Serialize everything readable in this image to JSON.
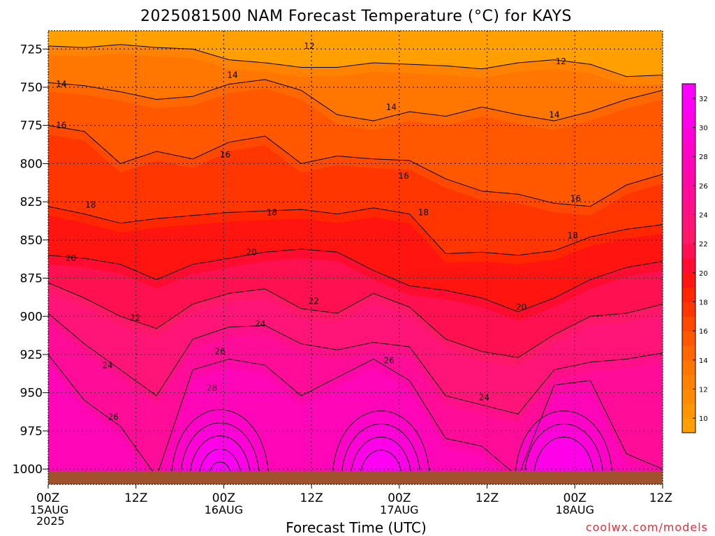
{
  "title": "2025081500 NAM Forecast Temperature (°C) for KAYS",
  "credit": "coolwx.com/models",
  "chart_data": {
    "type": "heatmap",
    "title": "2025081500 NAM Forecast Temperature (°C) for KAYS",
    "xlabel": "Forecast Time (UTC)",
    "ylabel": "",
    "xlim_hours": [
      0,
      84
    ],
    "ylim_hpa": [
      1010,
      713
    ],
    "y_ticks": [
      725,
      750,
      775,
      800,
      825,
      850,
      875,
      900,
      925,
      950,
      975,
      1000
    ],
    "x_ticks": [
      {
        "hour": 0,
        "line1": "00Z",
        "line2": "15AUG",
        "line3": "2025"
      },
      {
        "hour": 12,
        "line1": "12Z",
        "line2": "",
        "line3": ""
      },
      {
        "hour": 24,
        "line1": "00Z",
        "line2": "16AUG",
        "line3": ""
      },
      {
        "hour": 36,
        "line1": "12Z",
        "line2": "",
        "line3": ""
      },
      {
        "hour": 48,
        "line1": "00Z",
        "line2": "17AUG",
        "line3": ""
      },
      {
        "hour": 60,
        "line1": "12Z",
        "line2": "",
        "line3": ""
      },
      {
        "hour": 72,
        "line1": "00Z",
        "line2": "18AUG",
        "line3": ""
      },
      {
        "hour": 84,
        "line1": "12Z",
        "line2": "",
        "line3": ""
      }
    ],
    "colorbar": {
      "levels": [
        9,
        10,
        11,
        12,
        13,
        14,
        15,
        16,
        17,
        18,
        19,
        20,
        21,
        22,
        23,
        24,
        25,
        26,
        27,
        28,
        29,
        30,
        31,
        32,
        33
      ],
      "tick_labels": [
        "10",
        "12",
        "14",
        "16",
        "18",
        "20",
        "22",
        "24",
        "26",
        "28",
        "30",
        "32"
      ],
      "colors": [
        "#ffa000",
        "#ff9600",
        "#ff8c00",
        "#ff8200",
        "#ff7600",
        "#ff6800",
        "#ff5800",
        "#ff4800",
        "#ff3600",
        "#ff2600",
        "#ff1410",
        "#ff0c30",
        "#ff1050",
        "#ff1868",
        "#ff1478",
        "#ff1088",
        "#ff0c98",
        "#ff08a8",
        "#ff06b8",
        "#ff04c8",
        "#ff02d8",
        "#ff00e8",
        "#ff00f4",
        "#ff00ff"
      ]
    },
    "ground_color": "#a0522d",
    "grid": true,
    "isotherms": [
      {
        "value": 12,
        "pressure": [
          723,
          724,
          722,
          724,
          725,
          732,
          734,
          737,
          737,
          734,
          735,
          736,
          738,
          734,
          732,
          735,
          743,
          742
        ]
      },
      {
        "value": 14,
        "pressure": [
          747,
          749,
          753,
          758,
          756,
          748,
          745,
          752,
          768,
          772,
          766,
          769,
          763,
          768,
          772,
          766,
          758,
          752
        ]
      },
      {
        "value": 16,
        "pressure": [
          775,
          779,
          800,
          792,
          797,
          786,
          782,
          800,
          795,
          797,
          798,
          810,
          818,
          820,
          826,
          828,
          814,
          807
        ]
      },
      {
        "value": 18,
        "pressure": [
          828,
          833,
          839,
          836,
          834,
          832,
          831,
          830,
          833,
          829,
          833,
          859,
          858,
          860,
          857,
          848,
          843,
          840
        ]
      },
      {
        "value": 20,
        "pressure": [
          860,
          862,
          866,
          876,
          866,
          862,
          858,
          856,
          858,
          870,
          880,
          883,
          888,
          897,
          888,
          876,
          868,
          864
        ]
      },
      {
        "value": 22,
        "pressure": [
          878,
          888,
          900,
          908,
          892,
          885,
          882,
          895,
          898,
          885,
          894,
          915,
          923,
          927,
          912,
          900,
          898,
          892
        ]
      },
      {
        "value": 24,
        "pressure": [
          898,
          918,
          935,
          952,
          915,
          907,
          906,
          918,
          922,
          917,
          920,
          952,
          958,
          964,
          935,
          930,
          928,
          924
        ]
      },
      {
        "value": 26,
        "pressure": [
          925,
          955,
          972,
          1005,
          935,
          928,
          932,
          952,
          940,
          928,
          942,
          980,
          985,
          1005,
          945,
          942,
          990,
          1000
        ]
      }
    ],
    "contour_labels": [
      {
        "value": "12",
        "hour": 35.7,
        "p": 723
      },
      {
        "value": "12",
        "hour": 70.1,
        "p": 733
      },
      {
        "value": "14",
        "hour": 1.8,
        "p": 748
      },
      {
        "value": "14",
        "hour": 25.2,
        "p": 742
      },
      {
        "value": "14",
        "hour": 46.9,
        "p": 763
      },
      {
        "value": "14",
        "hour": 69.2,
        "p": 768
      },
      {
        "value": "16",
        "hour": 1.8,
        "p": 775
      },
      {
        "value": "16",
        "hour": 24.2,
        "p": 794
      },
      {
        "value": "16",
        "hour": 48.6,
        "p": 808
      },
      {
        "value": "16",
        "hour": 72.1,
        "p": 823
      },
      {
        "value": "18",
        "hour": 5.8,
        "p": 827
      },
      {
        "value": "18",
        "hour": 30.6,
        "p": 832
      },
      {
        "value": "18",
        "hour": 51.3,
        "p": 832
      },
      {
        "value": "18",
        "hour": 71.7,
        "p": 847
      },
      {
        "value": "20",
        "hour": 3.1,
        "p": 862
      },
      {
        "value": "20",
        "hour": 27.8,
        "p": 858
      },
      {
        "value": "20",
        "hour": 64.7,
        "p": 894
      },
      {
        "value": "22",
        "hour": 11.9,
        "p": 901
      },
      {
        "value": "22",
        "hour": 36.3,
        "p": 890
      },
      {
        "value": "24",
        "hour": 8.1,
        "p": 932
      },
      {
        "value": "24",
        "hour": 29.0,
        "p": 905
      },
      {
        "value": "24",
        "hour": 59.6,
        "p": 953
      },
      {
        "value": "26",
        "hour": 8.9,
        "p": 966
      },
      {
        "value": "26",
        "hour": 23.5,
        "p": 923
      },
      {
        "value": "26",
        "hour": 46.6,
        "p": 929
      },
      {
        "value": "28",
        "hour": 22.4,
        "p": 947
      }
    ],
    "warm_maxima": [
      {
        "hour": 23.5,
        "p": 1002,
        "value": 32
      },
      {
        "hour": 45.5,
        "p": 1003,
        "value": 31
      },
      {
        "hour": 70.5,
        "p": 1003,
        "value": 30
      }
    ]
  }
}
